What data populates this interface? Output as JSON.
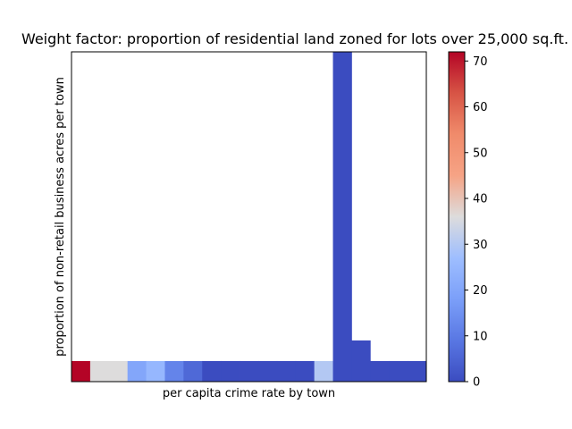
{
  "chart_data": {
    "type": "heatmap",
    "title": "Weight factor: proportion of residential land zoned for lots over 25,000 sq.ft.",
    "xlabel": "per capita crime rate by town",
    "ylabel": "proportion of non-retail business acres per town",
    "x_ticks_shown": false,
    "y_ticks_shown": false,
    "colormap": "coolwarm",
    "colorbar": {
      "min": 0,
      "max": 72,
      "ticks": [
        0,
        10,
        20,
        30,
        40,
        50,
        60,
        70
      ]
    },
    "grid_columns": 19,
    "grid_rows": 16,
    "columns": [
      {
        "bottom_row_value": 72
      },
      {
        "bottom_row_value": 36
      },
      {
        "bottom_row_value": 36
      },
      {
        "bottom_row_value": 20
      },
      {
        "bottom_row_value": 25
      },
      {
        "bottom_row_value": 12
      },
      {
        "bottom_row_value": 6
      },
      {
        "bottom_row_value": 0
      },
      {
        "bottom_row_value": 0
      },
      {
        "bottom_row_value": 0
      },
      {
        "bottom_row_value": 0
      },
      {
        "bottom_row_value": 0
      },
      {
        "bottom_row_value": 0
      },
      {
        "bottom_row_value": 30
      },
      {
        "bottom_row_value": 0,
        "column_value": 0,
        "column_rows": 16
      },
      {
        "bottom_row_value": 0,
        "column_value": 0,
        "column_rows": 2
      },
      {
        "bottom_row_value": 0
      },
      {
        "bottom_row_value": 0
      },
      {
        "bottom_row_value": 0
      }
    ]
  }
}
